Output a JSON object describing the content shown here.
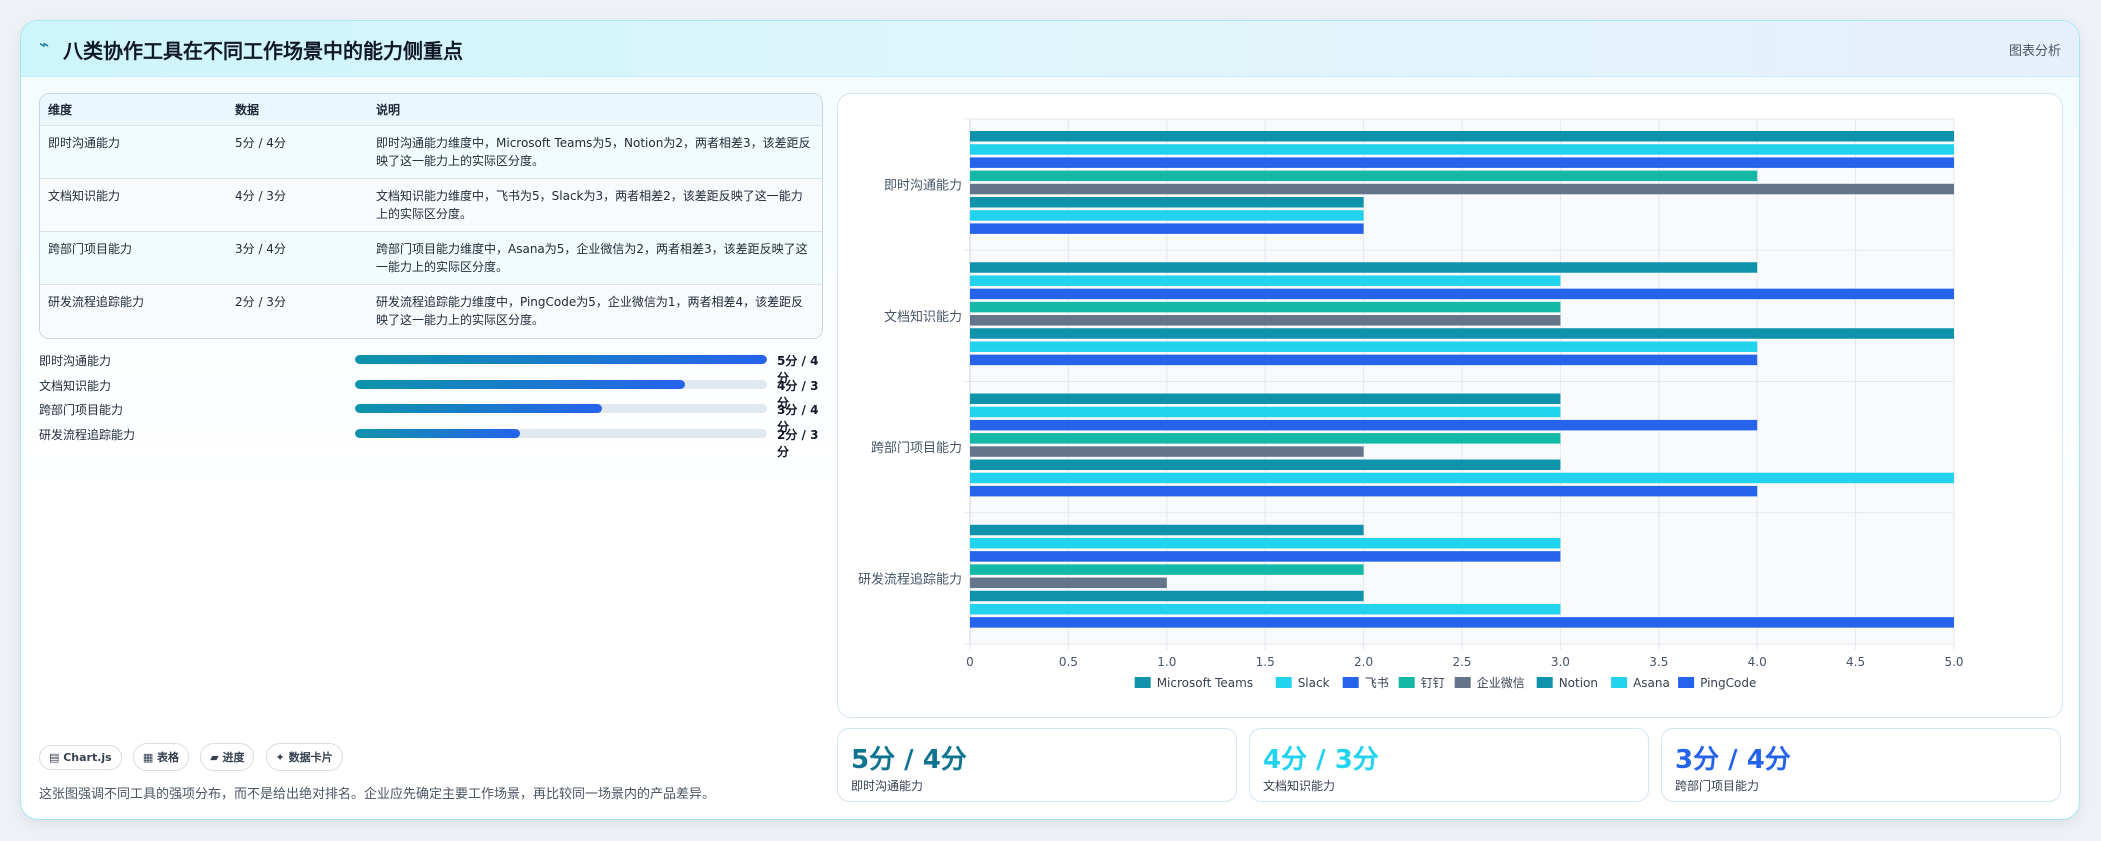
{
  "header": {
    "logo_icon": "line-chart-icon",
    "logo_glyph": "⌁",
    "title": "八类协作工具在不同工作场景中的能力侧重点",
    "tag": "图表分析"
  },
  "table": {
    "columns": [
      "维度",
      "数据",
      "说明"
    ],
    "rows": [
      {
        "dim": "即时沟通能力",
        "data": "5分 / 4分",
        "desc": "即时沟通能力维度中，Microsoft Teams为5，Notion为2，两者相差3，该差距反映了这一能力上的实际区分度。"
      },
      {
        "dim": "文档知识能力",
        "data": "4分 / 3分",
        "desc": "文档知识能力维度中，飞书为5，Slack为3，两者相差2，该差距反映了这一能力上的实际区分度。"
      },
      {
        "dim": "跨部门项目能力",
        "data": "3分 / 4分",
        "desc": "跨部门项目能力维度中，Asana为5，企业微信为2，两者相差3，该差距反映了这一能力上的实际区分度。"
      },
      {
        "dim": "研发流程追踪能力",
        "data": "2分 / 3分",
        "desc": "研发流程追踪能力维度中，PingCode为5，企业微信为1，两者相差4，该差距反映了这一能力上的实际区分度。"
      }
    ]
  },
  "progress": [
    {
      "label": "即时沟通能力",
      "value_text": "5分 / 4分",
      "fraction": 1.0
    },
    {
      "label": "文档知识能力",
      "value_text": "4分 / 3分",
      "fraction": 0.8
    },
    {
      "label": "跨部门项目能力",
      "value_text": "3分 / 4分",
      "fraction": 0.6
    },
    {
      "label": "研发流程追踪能力",
      "value_text": "2分 / 3分",
      "fraction": 0.4
    }
  ],
  "chips": [
    "▤ Chart.js",
    "▦ 表格",
    "▰ 进度",
    "✦ 数据卡片"
  ],
  "note": "这张图强调不同工具的强项分布，而不是给出绝对排名。企业应先确定主要工作场景，再比较同一场景内的产品差异。",
  "stats": [
    {
      "value": "5分 / 4分",
      "caption": "即时沟通能力",
      "color": "#0e7490"
    },
    {
      "value": "4分 / 3分",
      "caption": "文档知识能力",
      "color": "#22d3ee"
    },
    {
      "value": "3分 / 4分",
      "caption": "跨部门项目能力",
      "color": "#2563eb"
    }
  ],
  "chart_data": {
    "type": "bar",
    "orientation": "horizontal",
    "categories": [
      "即时沟通能力",
      "文档知识能力",
      "跨部门项目能力",
      "研发流程追踪能力"
    ],
    "series": [
      {
        "name": "Microsoft Teams",
        "color": "#0e93ab",
        "values": [
          5,
          4,
          3,
          2
        ]
      },
      {
        "name": "Slack",
        "color": "#22d3ee",
        "values": [
          5,
          3,
          3,
          3
        ]
      },
      {
        "name": "飞书",
        "color": "#2563eb",
        "values": [
          5,
          5,
          4,
          3
        ]
      },
      {
        "name": "钉钉",
        "color": "#14b8a6",
        "values": [
          4,
          3,
          3,
          2
        ]
      },
      {
        "name": "企业微信",
        "color": "#64748b",
        "values": [
          5,
          3,
          2,
          1
        ]
      },
      {
        "name": "Notion",
        "color": "#0e93ab",
        "values": [
          2,
          5,
          3,
          2
        ]
      },
      {
        "name": "Asana",
        "color": "#22d3ee",
        "values": [
          2,
          4,
          5,
          3
        ]
      },
      {
        "name": "PingCode",
        "color": "#2563eb",
        "values": [
          2,
          4,
          4,
          5
        ]
      }
    ],
    "xlim": [
      0,
      5
    ],
    "xticks": [
      "0",
      "0.5",
      "1.0",
      "1.5",
      "2.0",
      "2.5",
      "3.0",
      "3.5",
      "4.0",
      "4.5",
      "5.0"
    ],
    "grid": true,
    "legend": "bottom"
  }
}
